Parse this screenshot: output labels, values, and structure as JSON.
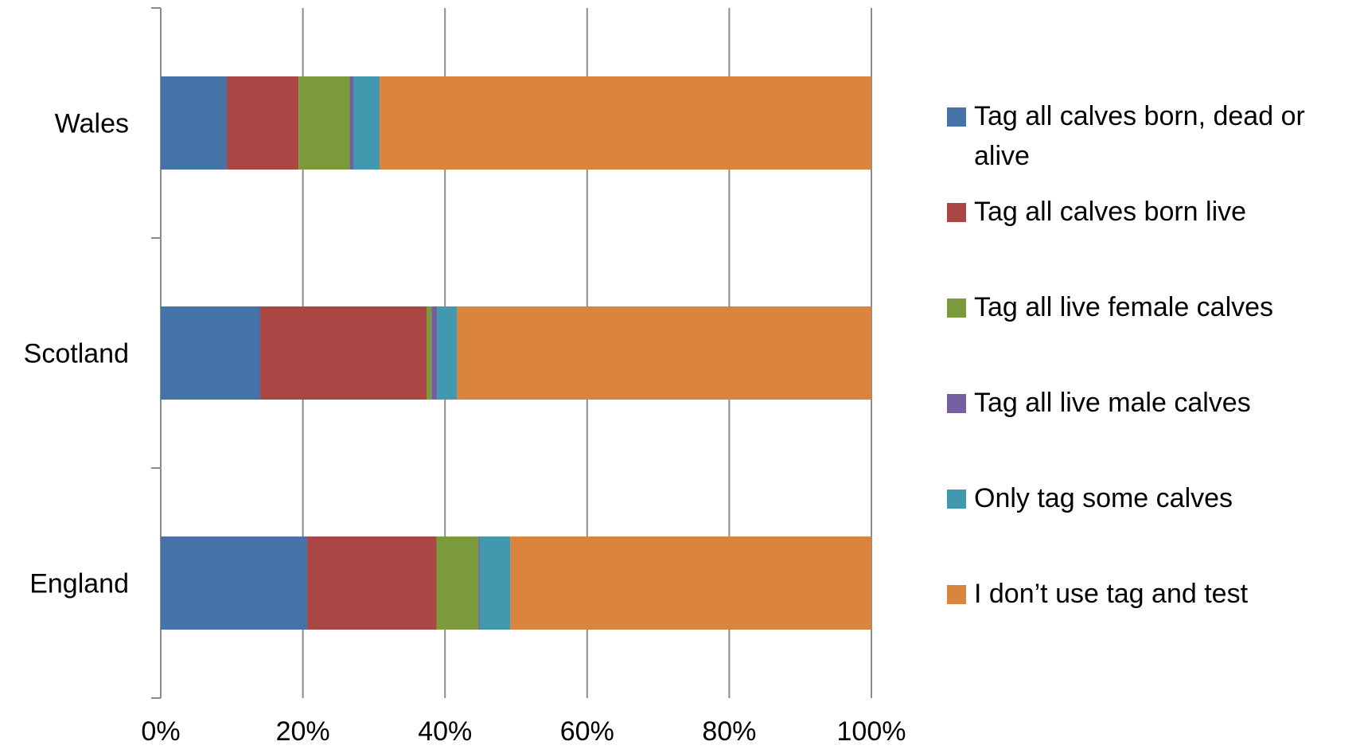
{
  "chart_data": {
    "type": "bar",
    "orientation": "horizontal",
    "stacked": true,
    "percent": true,
    "categories": [
      "Wales",
      "Scotland",
      "England"
    ],
    "xlim": [
      0,
      100
    ],
    "x_ticks": [
      "0%",
      "20%",
      "40%",
      "60%",
      "80%",
      "100%"
    ],
    "grid": true,
    "legend_position": "right",
    "series": [
      {
        "name": "Tag all calves born, dead or alive",
        "color": "#4572A7",
        "values": [
          9.3,
          14.0,
          20.6
        ]
      },
      {
        "name": "Tag all calves born live",
        "color": "#AA4643",
        "values": [
          10.1,
          23.4,
          18.2
        ]
      },
      {
        "name": "Tag all live female calves",
        "color": "#7A9A3C",
        "values": [
          7.2,
          0.7,
          5.9
        ]
      },
      {
        "name": "Tag all live male calves",
        "color": "#7460A0",
        "values": [
          0.5,
          0.8,
          0.2
        ]
      },
      {
        "name": "Only tag some calves",
        "color": "#4198AF",
        "values": [
          3.7,
          2.8,
          4.3
        ]
      },
      {
        "name": "I don’t use tag and test",
        "color": "#DB843D",
        "values": [
          69.2,
          58.3,
          50.8
        ]
      }
    ]
  }
}
